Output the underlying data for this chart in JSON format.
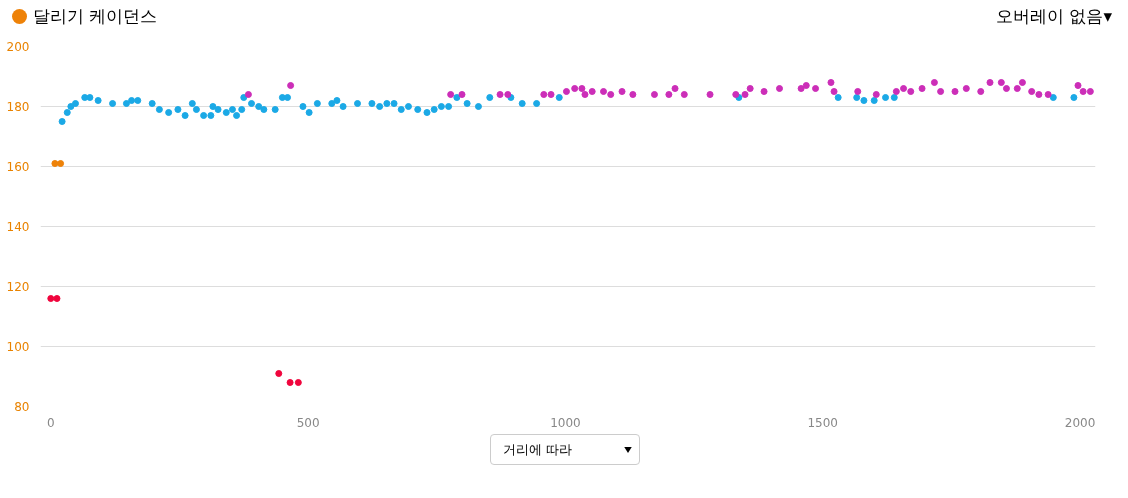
{
  "chart_data": {
    "type": "scatter",
    "title": "달리기 케이던스",
    "annotations": [
      "오버레이 없음▾",
      "거리에 따라"
    ],
    "xlim": [
      -20,
      2030
    ],
    "ylim": [
      80,
      200
    ],
    "xticks": [
      0,
      500,
      1000,
      1500,
      2000
    ],
    "yticks": [
      80,
      100,
      120,
      140,
      160,
      180,
      200
    ],
    "grid": "y",
    "marker": "circle",
    "series": [
      {
        "color": "#1ba9e6",
        "x": [
          22,
          32,
          39,
          48,
          66,
          76,
          92,
          120,
          147,
          157,
          169,
          197,
          211,
          229,
          247,
          261,
          275,
          283,
          297,
          311,
          315,
          325,
          341,
          353,
          361,
          371,
          375,
          390,
          404,
          414,
          436,
          450,
          460,
          490,
          502,
          518,
          546,
          556,
          568,
          596,
          624,
          639,
          653,
          667,
          681,
          695,
          713,
          731,
          745,
          759,
          773,
          789,
          809,
          831,
          853,
          894,
          916,
          944,
          988,
          1337,
          1530,
          1566,
          1580,
          1600,
          1622,
          1639,
          1948,
          1988
        ],
        "values": [
          175,
          178,
          180,
          181,
          183,
          183,
          182,
          181,
          181,
          182,
          182,
          181,
          179,
          178,
          179,
          177,
          181,
          179,
          177,
          177,
          180,
          179,
          178,
          179,
          177,
          179,
          183,
          181,
          180,
          179,
          179,
          183,
          183,
          180,
          178,
          181,
          181,
          182,
          180,
          181,
          181,
          180,
          181,
          181,
          179,
          180,
          179,
          178,
          179,
          180,
          180,
          183,
          181,
          180,
          183,
          183,
          181,
          181,
          183,
          183,
          183,
          183,
          182,
          182,
          183,
          183,
          183,
          183
        ]
      },
      {
        "color": "#cc2eb8",
        "x": [
          384,
          466,
          777,
          799,
          873,
          888,
          958,
          972,
          1002,
          1018,
          1032,
          1038,
          1052,
          1074,
          1088,
          1110,
          1131,
          1173,
          1201,
          1213,
          1231,
          1281,
          1331,
          1349,
          1359,
          1386,
          1416,
          1458,
          1468,
          1486,
          1516,
          1522,
          1568,
          1604,
          1643,
          1657,
          1671,
          1693,
          1717,
          1729,
          1757,
          1779,
          1807,
          1825,
          1847,
          1857,
          1878,
          1888,
          1906,
          1920,
          1938,
          1996,
          2006,
          2020
        ],
        "values": [
          184,
          187,
          184,
          184,
          184,
          184,
          184,
          184,
          185,
          186,
          186,
          184,
          185,
          185,
          184,
          185,
          184,
          184,
          184,
          186,
          184,
          184,
          184,
          184,
          186,
          185,
          186,
          186,
          187,
          186,
          188,
          185,
          185,
          184,
          185,
          186,
          185,
          186,
          188,
          185,
          185,
          186,
          185,
          188,
          188,
          186,
          186,
          188,
          185,
          184,
          184,
          187,
          185,
          185
        ]
      },
      {
        "color": "#f0053d",
        "x": [
          0,
          12,
          443,
          465,
          481
        ],
        "values": [
          116,
          116,
          91,
          88,
          88
        ]
      },
      {
        "color": "#ee8208",
        "x": [
          8,
          19
        ],
        "values": [
          161,
          161
        ]
      }
    ]
  }
}
